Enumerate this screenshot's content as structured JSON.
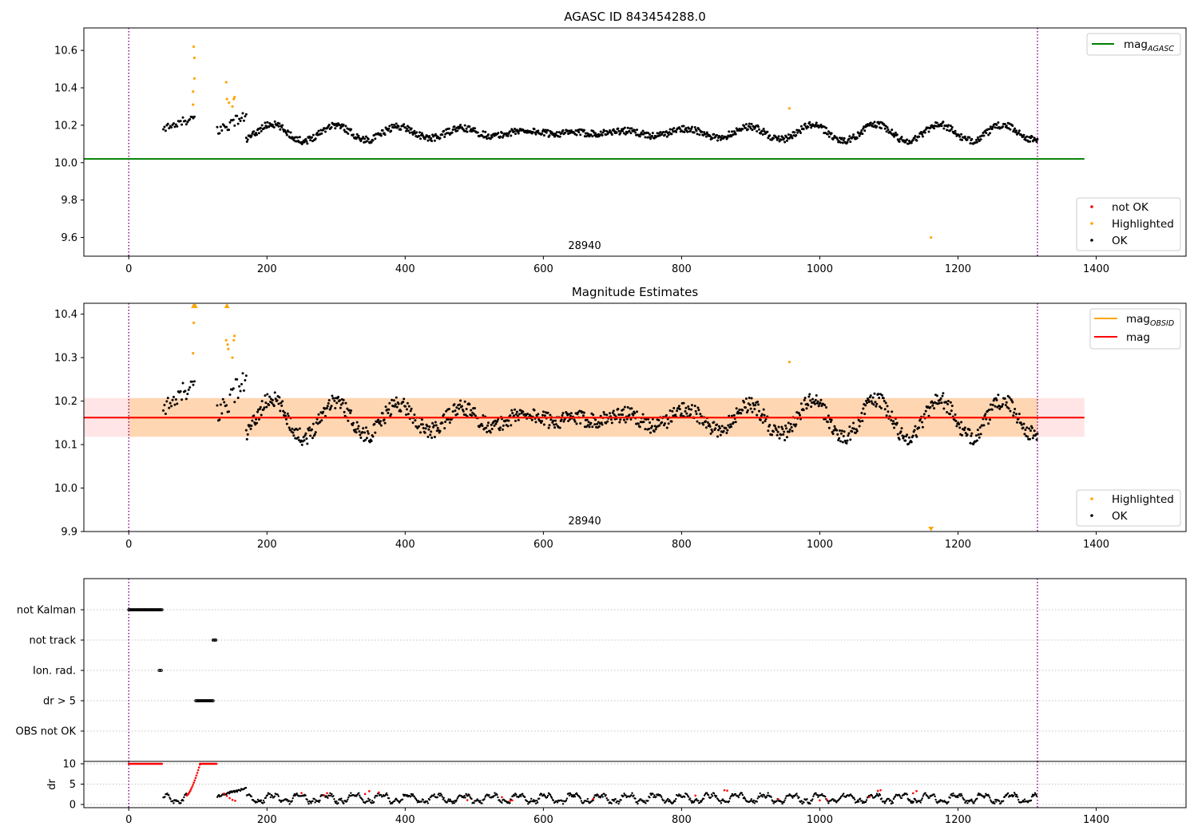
{
  "chart_data": [
    {
      "type": "scatter",
      "title": "AGASC ID 843454288.0",
      "xlim": [
        -65,
        1530
      ],
      "ylim": [
        9.5,
        10.72
      ],
      "x_ticks": [
        "0",
        "200",
        "400",
        "600",
        "800",
        "1000",
        "1200",
        "1400"
      ],
      "y_ticks": [
        "9.6",
        "9.8",
        "10.0",
        "10.2",
        "10.4",
        "10.6"
      ],
      "vlines": [
        0,
        1315
      ],
      "hline": {
        "label_main": "mag",
        "label_sub": "AGASC",
        "value": 10.02,
        "xrange": [
          -65,
          1383
        ],
        "color": "#008000"
      },
      "obsid_label": {
        "text": "28940",
        "x": 660
      },
      "legend_lines": [
        {
          "main": "mag",
          "sub": "AGASC",
          "color": "#008000"
        }
      ],
      "legend_points": [
        {
          "label": "not OK",
          "color": "#ff0000"
        },
        {
          "label": "Highlighted",
          "color": "#ffa500"
        },
        {
          "label": "OK",
          "color": "#000000"
        }
      ],
      "highlighted": [
        [
          94,
          10.62
        ],
        [
          95,
          10.56
        ],
        [
          95,
          10.45
        ],
        [
          93,
          10.38
        ],
        [
          93,
          10.31
        ],
        [
          141,
          10.43
        ],
        [
          142,
          10.34
        ],
        [
          145,
          10.32
        ],
        [
          150,
          10.3
        ],
        [
          152,
          10.34
        ],
        [
          153,
          10.35
        ],
        [
          956,
          10.29
        ],
        [
          1161,
          9.6
        ]
      ],
      "ok_segments": [
        {
          "start": 50,
          "end": 95,
          "n": 28,
          "base": 10.18,
          "slope": 0.0012,
          "amp": 0.015,
          "period": 18,
          "noise": 0.02
        },
        {
          "start": 128,
          "end": 170,
          "n": 26,
          "base": 10.17,
          "slope": 0.002,
          "amp": 0.02,
          "period": 20,
          "noise": 0.03
        },
        {
          "start": 170,
          "end": 1315,
          "n": 1050,
          "base": 10.16,
          "slope": 0,
          "amp": 0.045,
          "period": 92,
          "noise": 0.018
        }
      ]
    },
    {
      "type": "scatter",
      "title": "Magnitude Estimates",
      "xlim": [
        -65,
        1530
      ],
      "ylim": [
        9.9,
        10.425
      ],
      "x_ticks": [
        "0",
        "200",
        "400",
        "600",
        "800",
        "1000",
        "1200",
        "1400"
      ],
      "y_ticks": [
        "9.9",
        "10.0",
        "10.1",
        "10.2",
        "10.3",
        "10.4"
      ],
      "vlines": [
        0,
        1315
      ],
      "mag_line": {
        "value": 10.162,
        "color": "#ff0000"
      },
      "band_obsid": {
        "low": 10.118,
        "high": 10.207,
        "xrange": [
          -65,
          1383
        ],
        "color": "#ffa500"
      },
      "band_mag": {
        "low": 10.118,
        "high": 10.207,
        "xrange": [
          -65,
          1383
        ],
        "color": "#ff9999"
      },
      "obsid_label": {
        "text": "28940",
        "x": 660
      },
      "legend_lines": [
        {
          "main": "mag",
          "sub": "OBSID",
          "color": "#ffa500"
        },
        {
          "main": "mag",
          "sub": "",
          "color": "#ff0000"
        }
      ],
      "legend_points": [
        {
          "label": "Highlighted",
          "color": "#ffa500"
        },
        {
          "label": "OK",
          "color": "#000000"
        }
      ],
      "highlighted": [
        [
          94,
          10.42
        ],
        [
          95,
          10.42
        ],
        [
          96,
          10.42
        ],
        [
          94,
          10.38
        ],
        [
          93,
          10.31
        ],
        [
          142,
          10.42
        ],
        [
          141,
          10.34
        ],
        [
          143,
          10.33
        ],
        [
          144,
          10.32
        ],
        [
          150,
          10.3
        ],
        [
          152,
          10.34
        ],
        [
          153,
          10.35
        ],
        [
          956,
          10.29
        ]
      ],
      "clipped_up": [
        [
          94,
          10.42
        ],
        [
          96,
          10.42
        ],
        [
          142,
          10.42
        ]
      ],
      "clipped_down": [
        [
          1161,
          9.9
        ]
      ],
      "ok_segments": [
        {
          "start": 50,
          "end": 95,
          "n": 28,
          "base": 10.18,
          "slope": 0.0012,
          "amp": 0.015,
          "period": 18,
          "noise": 0.02
        },
        {
          "start": 128,
          "end": 170,
          "n": 26,
          "base": 10.17,
          "slope": 0.002,
          "amp": 0.02,
          "period": 20,
          "noise": 0.03
        },
        {
          "start": 170,
          "end": 1315,
          "n": 1050,
          "base": 10.16,
          "slope": 0,
          "amp": 0.045,
          "period": 92,
          "noise": 0.018
        }
      ]
    },
    {
      "type": "scatter",
      "title": "",
      "xlim": [
        -65,
        1530
      ],
      "categories": [
        "not Kalman",
        "not track",
        "Ion. rad.",
        "dr > 5",
        "OBS not OK"
      ],
      "flags": [
        {
          "category": "not Kalman",
          "start": 0,
          "end": 48,
          "n": 40
        },
        {
          "category": "not track",
          "start": 122,
          "end": 126,
          "n": 4
        },
        {
          "category": "Ion. rad.",
          "start": 44,
          "end": 47,
          "n": 3
        },
        {
          "category": "dr > 5",
          "start": 97,
          "end": 122,
          "n": 20
        }
      ]
    },
    {
      "type": "scatter",
      "title": "",
      "xlim": [
        -65,
        1530
      ],
      "ylim": [
        0,
        10
      ],
      "ylabel": "dr",
      "x_ticks": [
        "0",
        "200",
        "400",
        "600",
        "800",
        "1000",
        "1200",
        "1400"
      ],
      "y_ticks": [
        "0",
        "5",
        "10"
      ],
      "vlines": [
        0,
        1315
      ],
      "red_points": [
        {
          "start": 0,
          "end": 48,
          "n": 40,
          "value": 10
        },
        {
          "start": 103,
          "end": 127,
          "n": 22,
          "value": 10
        },
        {
          "start": 84,
          "end": 103,
          "n": 16,
          "ramp_from": 2.2,
          "ramp_to": 9.8
        }
      ],
      "red_marks": [
        138,
        142,
        146,
        150,
        154,
        250,
        283,
        287,
        342,
        348,
        362,
        490,
        540,
        552,
        555,
        672,
        820,
        862,
        866,
        940,
        1000,
        1010,
        1072,
        1084,
        1088,
        1135,
        1140
      ]
    }
  ]
}
